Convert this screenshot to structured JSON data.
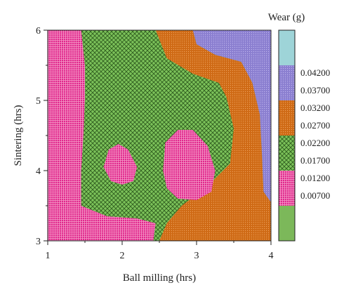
{
  "chart_data": {
    "type": "contour",
    "title": "",
    "xlabel": "Ball milling (hrs)",
    "ylabel": "Sintering (hrs)",
    "xlim": [
      1,
      4
    ],
    "ylim": [
      3,
      6
    ],
    "x_ticks": [
      "1",
      "2",
      "3",
      "4"
    ],
    "y_ticks": [
      "3",
      "4",
      "5",
      "6"
    ],
    "legend": {
      "title": "Wear (g)",
      "placement": "right",
      "levels": [
        "0.04200",
        "0.03700",
        "0.03200",
        "0.02700",
        "0.02200",
        "0.01700",
        "0.01200",
        "0.00700"
      ],
      "bands": [
        {
          "range": [
            0.042,
            0.047
          ],
          "color": "#9ed4d8",
          "pattern": "none"
        },
        {
          "range": [
            0.037,
            0.042
          ],
          "color": "#8b7fd0",
          "pattern": "dots"
        },
        {
          "range": [
            0.032,
            0.037
          ],
          "color": "#cf6a15",
          "pattern": "dots"
        },
        {
          "range": [
            0.027,
            0.032
          ],
          "color": "#cf6a15",
          "pattern": "dots"
        },
        {
          "range": [
            0.022,
            0.027
          ],
          "color": "#7cc25a",
          "pattern": "crosshatch"
        },
        {
          "range": [
            0.017,
            0.022
          ],
          "color": "#7cc25a",
          "pattern": "crosshatch"
        },
        {
          "range": [
            0.012,
            0.017
          ],
          "color": "#e0288c",
          "pattern": "grid"
        },
        {
          "range": [
            0.007,
            0.012
          ],
          "color": "#7cb85a",
          "pattern": "none"
        }
      ]
    },
    "regions": [
      {
        "label": "low-wear-left",
        "level": "0.01200",
        "points": [
          [
            1.0,
            3.0
          ],
          [
            1.0,
            6.0
          ],
          [
            1.45,
            6.0
          ],
          [
            1.5,
            5.5
          ],
          [
            1.5,
            5.0
          ],
          [
            1.48,
            4.5
          ],
          [
            1.45,
            4.0
          ],
          [
            1.45,
            3.5
          ],
          [
            1.8,
            3.35
          ],
          [
            2.2,
            3.32
          ],
          [
            2.45,
            3.25
          ],
          [
            2.42,
            3.0
          ]
        ]
      },
      {
        "label": "mid-wear-green",
        "level": "0.02200",
        "points": [
          [
            1.45,
            6.0
          ],
          [
            2.45,
            6.0
          ],
          [
            2.6,
            5.6
          ],
          [
            2.95,
            5.38
          ],
          [
            3.3,
            5.25
          ],
          [
            3.4,
            5.05
          ],
          [
            3.5,
            4.6
          ],
          [
            3.45,
            4.1
          ],
          [
            3.15,
            3.78
          ],
          [
            2.8,
            3.5
          ],
          [
            2.6,
            3.25
          ],
          [
            2.5,
            3.0
          ],
          [
            2.42,
            3.0
          ],
          [
            2.45,
            3.25
          ],
          [
            2.2,
            3.32
          ],
          [
            1.8,
            3.35
          ],
          [
            1.45,
            3.5
          ],
          [
            1.45,
            4.0
          ],
          [
            1.48,
            4.5
          ],
          [
            1.5,
            5.0
          ],
          [
            1.5,
            5.5
          ]
        ]
      },
      {
        "label": "high-wear-orange",
        "level": "0.02700",
        "points": [
          [
            2.45,
            6.0
          ],
          [
            2.95,
            6.0
          ],
          [
            3.0,
            5.8
          ],
          [
            3.25,
            5.65
          ],
          [
            3.6,
            5.55
          ],
          [
            3.75,
            5.25
          ],
          [
            3.85,
            4.8
          ],
          [
            3.88,
            4.2
          ],
          [
            3.9,
            3.7
          ],
          [
            4.0,
            3.55
          ],
          [
            4.0,
            3.0
          ],
          [
            2.5,
            3.0
          ],
          [
            2.6,
            3.25
          ],
          [
            2.8,
            3.5
          ],
          [
            3.15,
            3.78
          ],
          [
            3.45,
            4.1
          ],
          [
            3.5,
            4.6
          ],
          [
            3.4,
            5.05
          ],
          [
            3.3,
            5.25
          ],
          [
            2.95,
            5.38
          ],
          [
            2.6,
            5.6
          ]
        ]
      },
      {
        "label": "highest-wear-purple",
        "level": "0.03700",
        "points": [
          [
            2.95,
            6.0
          ],
          [
            4.0,
            6.0
          ],
          [
            4.0,
            3.55
          ],
          [
            3.9,
            3.7
          ],
          [
            3.88,
            4.2
          ],
          [
            3.85,
            4.8
          ],
          [
            3.75,
            5.25
          ],
          [
            3.6,
            5.55
          ],
          [
            3.25,
            5.65
          ],
          [
            3.0,
            5.8
          ]
        ]
      },
      {
        "label": "low-wear-island-small",
        "level": "0.01200",
        "points": [
          [
            1.75,
            4.05
          ],
          [
            1.82,
            4.3
          ],
          [
            1.95,
            4.38
          ],
          [
            2.08,
            4.3
          ],
          [
            2.2,
            4.05
          ],
          [
            2.15,
            3.85
          ],
          [
            2.0,
            3.8
          ],
          [
            1.85,
            3.85
          ]
        ]
      },
      {
        "label": "low-wear-island-large",
        "level": "0.01200",
        "points": [
          [
            2.55,
            4.0
          ],
          [
            2.58,
            4.4
          ],
          [
            2.75,
            4.58
          ],
          [
            2.95,
            4.58
          ],
          [
            3.15,
            4.35
          ],
          [
            3.25,
            4.0
          ],
          [
            3.2,
            3.7
          ],
          [
            3.0,
            3.58
          ],
          [
            2.75,
            3.6
          ],
          [
            2.6,
            3.75
          ]
        ]
      }
    ],
    "grid": false
  }
}
